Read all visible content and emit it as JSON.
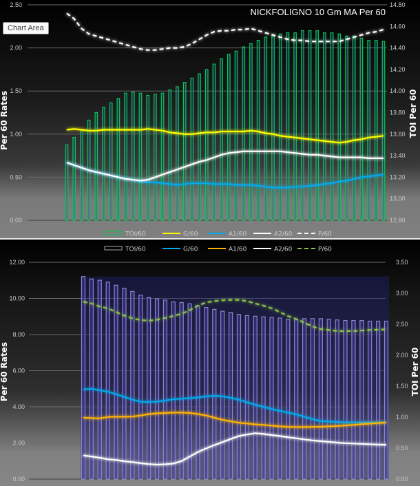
{
  "tooltip": "Chart Area",
  "chart_data": [
    {
      "type": "bar+line",
      "title": "NICKFOLIGNO 10 Gm MA Per 60",
      "ylabel": "Per 60 Rates",
      "y2label": "TOI Per 60",
      "ylim": [
        0,
        2.5
      ],
      "y2lim": [
        12.8,
        14.8
      ],
      "yticks": [
        "0.00",
        "0.50",
        "1.00",
        "1.50",
        "2.00",
        "2.50"
      ],
      "y2ticks": [
        "12.80",
        "13.00",
        "13.20",
        "13.40",
        "13.60",
        "13.80",
        "14.00",
        "14.20",
        "14.40",
        "14.60",
        "14.80"
      ],
      "grid": true,
      "legend": "bottom",
      "colors": {
        "bar_stroke": "#00c853",
        "G": "#ffff00",
        "A1": "#00aaee",
        "A2": "#ffffff",
        "P": "#ffffff"
      },
      "series": [
        {
          "name": "TOI/60",
          "kind": "bar",
          "axis": "right",
          "values": [
            13.5,
            13.57,
            13.64,
            13.73,
            13.8,
            13.85,
            13.89,
            13.93,
            13.98,
            13.99,
            13.98,
            13.96,
            13.97,
            13.98,
            14.01,
            14.04,
            14.08,
            14.12,
            14.16,
            14.2,
            14.25,
            14.3,
            14.34,
            14.37,
            14.41,
            14.44,
            14.47,
            14.5,
            14.51,
            14.53,
            14.54,
            14.54,
            14.56,
            14.56,
            14.56,
            14.54,
            14.54,
            14.53,
            14.51,
            14.51,
            14.49,
            14.47,
            14.47,
            14.46
          ]
        },
        {
          "name": "G/60",
          "kind": "line",
          "axis": "left",
          "values": [
            1.05,
            1.06,
            1.05,
            1.04,
            1.04,
            1.05,
            1.05,
            1.05,
            1.05,
            1.05,
            1.05,
            1.06,
            1.05,
            1.04,
            1.02,
            1.01,
            1.0,
            1.0,
            1.01,
            1.02,
            1.02,
            1.03,
            1.03,
            1.03,
            1.03,
            1.04,
            1.03,
            1.01,
            1.0,
            0.98,
            0.97,
            0.96,
            0.95,
            0.94,
            0.93,
            0.92,
            0.91,
            0.9,
            0.91,
            0.93,
            0.94,
            0.96,
            0.97,
            0.98
          ]
        },
        {
          "name": "A1/60",
          "kind": "line",
          "axis": "left",
          "values": [
            0.67,
            0.64,
            0.61,
            0.58,
            0.56,
            0.54,
            0.52,
            0.5,
            0.48,
            0.47,
            0.45,
            0.44,
            0.44,
            0.43,
            0.42,
            0.41,
            0.42,
            0.43,
            0.43,
            0.43,
            0.42,
            0.42,
            0.42,
            0.41,
            0.41,
            0.41,
            0.4,
            0.39,
            0.38,
            0.38,
            0.38,
            0.39,
            0.39,
            0.4,
            0.41,
            0.42,
            0.43,
            0.45,
            0.46,
            0.48,
            0.5,
            0.51,
            0.52,
            0.53
          ]
        },
        {
          "name": "A2/60",
          "kind": "line",
          "axis": "left",
          "values": [
            0.67,
            0.64,
            0.61,
            0.58,
            0.56,
            0.54,
            0.52,
            0.5,
            0.48,
            0.47,
            0.46,
            0.47,
            0.5,
            0.53,
            0.56,
            0.59,
            0.62,
            0.65,
            0.68,
            0.7,
            0.73,
            0.76,
            0.78,
            0.79,
            0.8,
            0.8,
            0.8,
            0.8,
            0.8,
            0.8,
            0.79,
            0.78,
            0.77,
            0.76,
            0.76,
            0.75,
            0.74,
            0.73,
            0.73,
            0.73,
            0.73,
            0.72,
            0.72,
            0.72
          ]
        },
        {
          "name": "P/60",
          "kind": "dashed",
          "axis": "right",
          "values": [
            14.72,
            14.67,
            14.58,
            14.53,
            14.51,
            14.49,
            14.47,
            14.45,
            14.43,
            14.41,
            14.39,
            14.38,
            14.38,
            14.39,
            14.4,
            14.4,
            14.41,
            14.44,
            14.48,
            14.52,
            14.55,
            14.56,
            14.56,
            14.57,
            14.57,
            14.58,
            14.56,
            14.54,
            14.52,
            14.5,
            14.48,
            14.47,
            14.47,
            14.46,
            14.46,
            14.46,
            14.46,
            14.46,
            14.48,
            14.5,
            14.52,
            14.54,
            14.55,
            14.57
          ]
        }
      ]
    },
    {
      "type": "bar+line",
      "ylabel": "Per 60 Rates",
      "y2label": "TOI Per 60",
      "ylim": [
        0,
        12
      ],
      "y2lim": [
        0,
        3.5
      ],
      "yticks": [
        "0.00",
        "2.00",
        "4.00",
        "6.00",
        "8.00",
        "10.00",
        "12.00"
      ],
      "y2ticks": [
        "0.00",
        "0.50",
        "1.00",
        "1.50",
        "2.00",
        "2.50",
        "3.00",
        "3.50"
      ],
      "grid": true,
      "legend": "top",
      "colors": {
        "bar_stroke": "#8c84cc",
        "G": "#00aaee",
        "A1": "#ffb300",
        "A2": "#ffffff",
        "P": "#8bc34a"
      },
      "series": [
        {
          "name": "TOI/60",
          "kind": "bar",
          "axis": "right",
          "values": [
            3.27,
            3.23,
            3.21,
            3.18,
            3.13,
            3.08,
            3.03,
            2.97,
            2.93,
            2.91,
            2.89,
            2.86,
            2.85,
            2.83,
            2.8,
            2.77,
            2.74,
            2.71,
            2.69,
            2.66,
            2.64,
            2.63,
            2.62,
            2.61,
            2.6,
            2.58,
            2.58,
            2.59,
            2.59,
            2.59,
            2.58,
            2.57,
            2.56,
            2.56,
            2.56,
            2.55,
            2.55,
            2.55
          ]
        },
        {
          "name": "G/60",
          "kind": "line",
          "axis": "left",
          "values": [
            4.96,
            5.0,
            4.92,
            4.84,
            4.7,
            4.55,
            4.4,
            4.28,
            4.27,
            4.29,
            4.35,
            4.42,
            4.45,
            4.48,
            4.52,
            4.58,
            4.61,
            4.58,
            4.5,
            4.4,
            4.25,
            4.12,
            4.0,
            3.88,
            3.78,
            3.68,
            3.59,
            3.45,
            3.32,
            3.21,
            3.18,
            3.16,
            3.14,
            3.14,
            3.14,
            3.14,
            3.14,
            3.14
          ]
        },
        {
          "name": "A1/60",
          "kind": "line",
          "axis": "left",
          "values": [
            3.4,
            3.38,
            3.36,
            3.44,
            3.45,
            3.45,
            3.46,
            3.52,
            3.6,
            3.64,
            3.66,
            3.68,
            3.68,
            3.66,
            3.6,
            3.52,
            3.4,
            3.28,
            3.2,
            3.12,
            3.08,
            3.03,
            3.0,
            2.96,
            2.92,
            2.89,
            2.88,
            2.88,
            2.89,
            2.9,
            2.92,
            2.94,
            2.97,
            3.0,
            3.04,
            3.07,
            3.1,
            3.13
          ]
        },
        {
          "name": "A2/60",
          "kind": "line",
          "axis": "left",
          "values": [
            1.31,
            1.25,
            1.18,
            1.1,
            1.06,
            0.99,
            0.94,
            0.88,
            0.83,
            0.8,
            0.82,
            0.86,
            1.0,
            1.25,
            1.5,
            1.7,
            1.88,
            2.05,
            2.22,
            2.38,
            2.47,
            2.54,
            2.5,
            2.44,
            2.38,
            2.32,
            2.26,
            2.2,
            2.14,
            2.1,
            2.06,
            2.02,
            1.99,
            1.97,
            1.95,
            1.93,
            1.91,
            1.9
          ]
        },
        {
          "name": "P/60",
          "kind": "dashed",
          "axis": "left",
          "values": [
            9.82,
            9.72,
            9.55,
            9.45,
            9.25,
            9.05,
            8.9,
            8.8,
            8.77,
            8.82,
            8.92,
            9.03,
            9.15,
            9.35,
            9.6,
            9.78,
            9.85,
            9.9,
            9.92,
            9.92,
            9.85,
            9.72,
            9.6,
            9.45,
            9.25,
            9.02,
            8.86,
            8.65,
            8.45,
            8.3,
            8.25,
            8.2,
            8.19,
            8.2,
            8.22,
            8.25,
            8.27,
            8.29
          ]
        }
      ]
    }
  ]
}
